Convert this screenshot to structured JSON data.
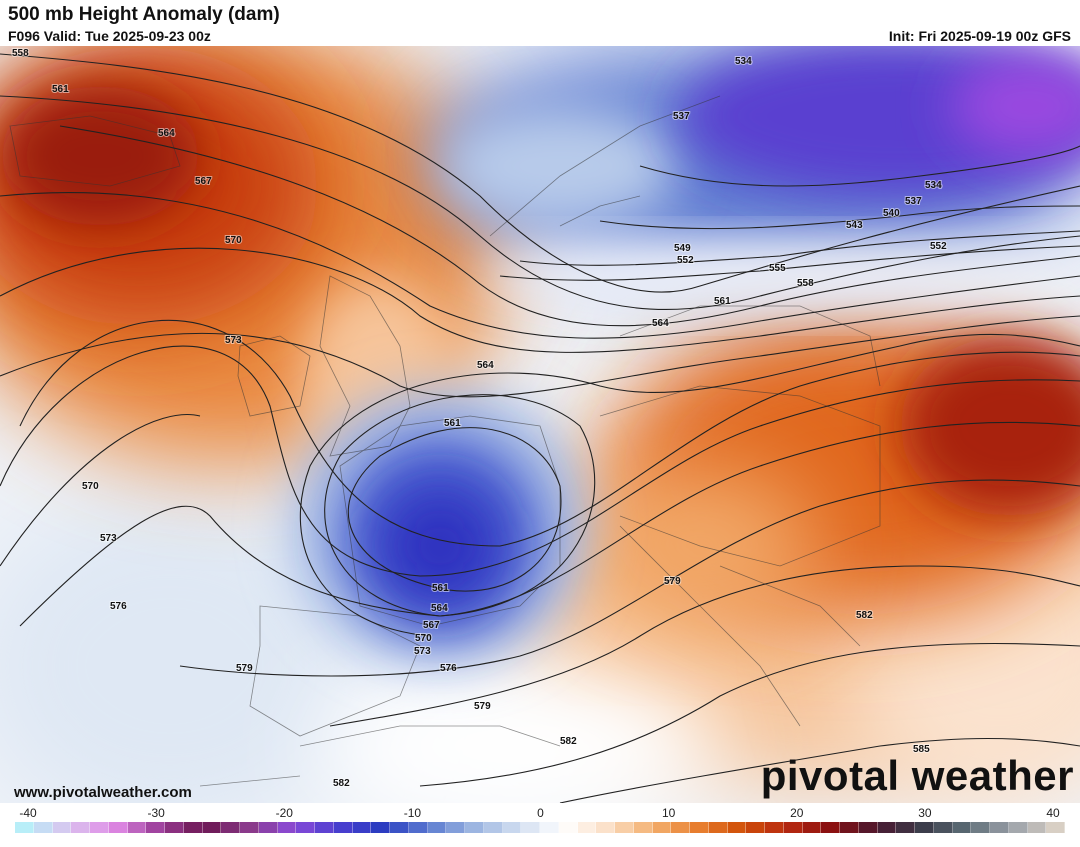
{
  "header": {
    "title": "500 mb Height Anomaly (dam)",
    "valid": "F096 Valid: Tue 2025-09-23 00z",
    "init": "Init: Fri 2025-09-19 00z GFS"
  },
  "footer": {
    "website": "www.pivotalweather.com",
    "brand": "pivotal weather"
  },
  "colorbar": {
    "ticks": [
      "-40",
      "-30",
      "-20",
      "-10",
      "0",
      "10",
      "20",
      "30",
      "40"
    ],
    "colors": [
      "#b8eef8",
      "#d9c3ee",
      "#e08ae6",
      "#9c3f9a",
      "#6a1550",
      "#8a3a8a",
      "#8a4ad8",
      "#4a3ed0",
      "#2a3cc0",
      "#5a7ad0",
      "#9ab4e0",
      "#cfdcf0",
      "#ffffff",
      "#fbe0c8",
      "#f4b070",
      "#e88030",
      "#d05008",
      "#b82a10",
      "#8a1010",
      "#4a1830",
      "#3a3a48",
      "#5a6a74",
      "#9aa0a8",
      "#d8cfc4"
    ]
  },
  "contours": {
    "levels": [
      "558",
      "561",
      "564",
      "567",
      "570",
      "573",
      "576",
      "579",
      "582",
      "585",
      "534",
      "537",
      "540",
      "543",
      "546",
      "549",
      "552",
      "555"
    ]
  },
  "map_colors": {
    "warm_core": "#9a1a0c",
    "warm": "#e0661e",
    "cold": "#3a40c8",
    "cold_core": "#7a3ad8"
  }
}
